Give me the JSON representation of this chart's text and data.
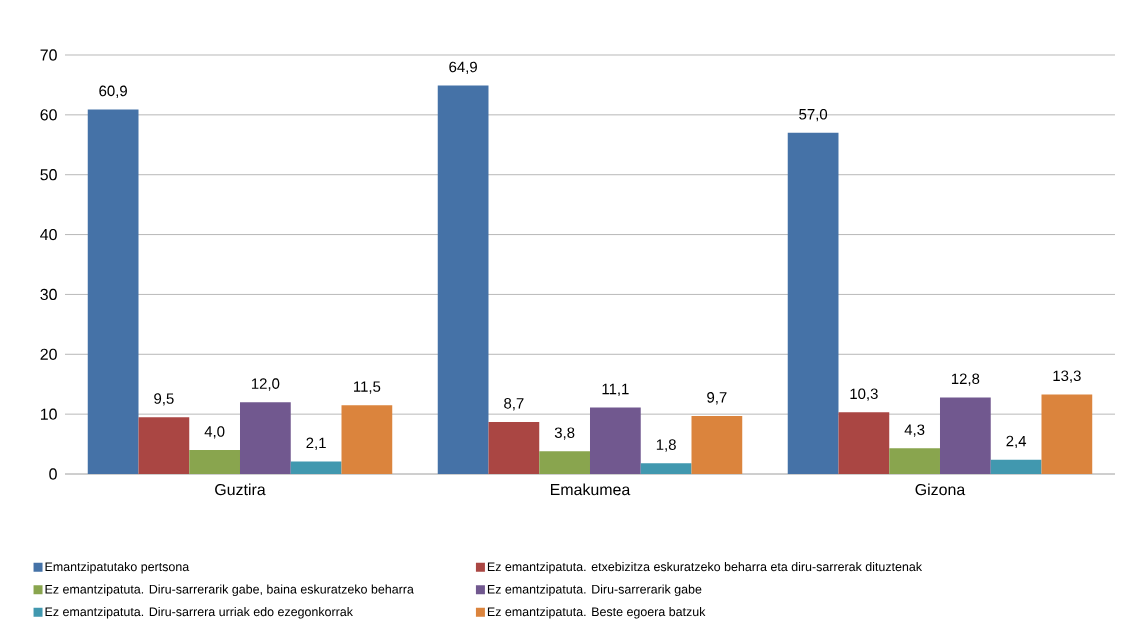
{
  "chart_data": {
    "type": "bar",
    "categories": [
      "Guztira",
      "Emakumea",
      "Gizona"
    ],
    "series": [
      {
        "name": "Emantzipatutako pertsona",
        "color": "#4572a7",
        "values": [
          60.9,
          64.9,
          57.0
        ],
        "value_labels": [
          "60,9",
          "64,9",
          "57,0"
        ]
      },
      {
        "name": "Ez emantzipatuta. etxebizitza eskuratzeko beharra eta diru-sarrerak dituztenak",
        "color": "#aa4643",
        "values": [
          9.5,
          8.7,
          10.3
        ],
        "value_labels": [
          "9,5",
          "8,7",
          "10,3"
        ]
      },
      {
        "name": "Ez emantzipatuta. Diru-sarrerarik gabe, baina eskuratzeko beharra",
        "color": "#89a54e",
        "values": [
          4.0,
          3.8,
          4.3
        ],
        "value_labels": [
          "4,0",
          "3,8",
          "4,3"
        ]
      },
      {
        "name": "Ez emantzipatuta. Diru-sarrerarik gabe",
        "color": "#71588f",
        "values": [
          12.0,
          11.1,
          12.8
        ],
        "value_labels": [
          "12,0",
          "11,1",
          "12,8"
        ]
      },
      {
        "name": "Ez emantzipatuta. Diru-sarrera urriak edo ezegonkorrak",
        "color": "#4198af",
        "values": [
          2.1,
          1.8,
          2.4
        ],
        "value_labels": [
          "2,1",
          "1,8",
          "2,4"
        ]
      },
      {
        "name": "Ez emantzipatuta. Beste egoera batzuk",
        "color": "#db843d",
        "values": [
          11.5,
          9.7,
          13.3
        ],
        "value_labels": [
          "11,5",
          "9,7",
          "13,3"
        ]
      }
    ],
    "ylim": [
      0,
      70
    ],
    "yticks": [
      0,
      10,
      20,
      30,
      40,
      50,
      60,
      70
    ],
    "grid": "y",
    "legend": "bottom"
  }
}
